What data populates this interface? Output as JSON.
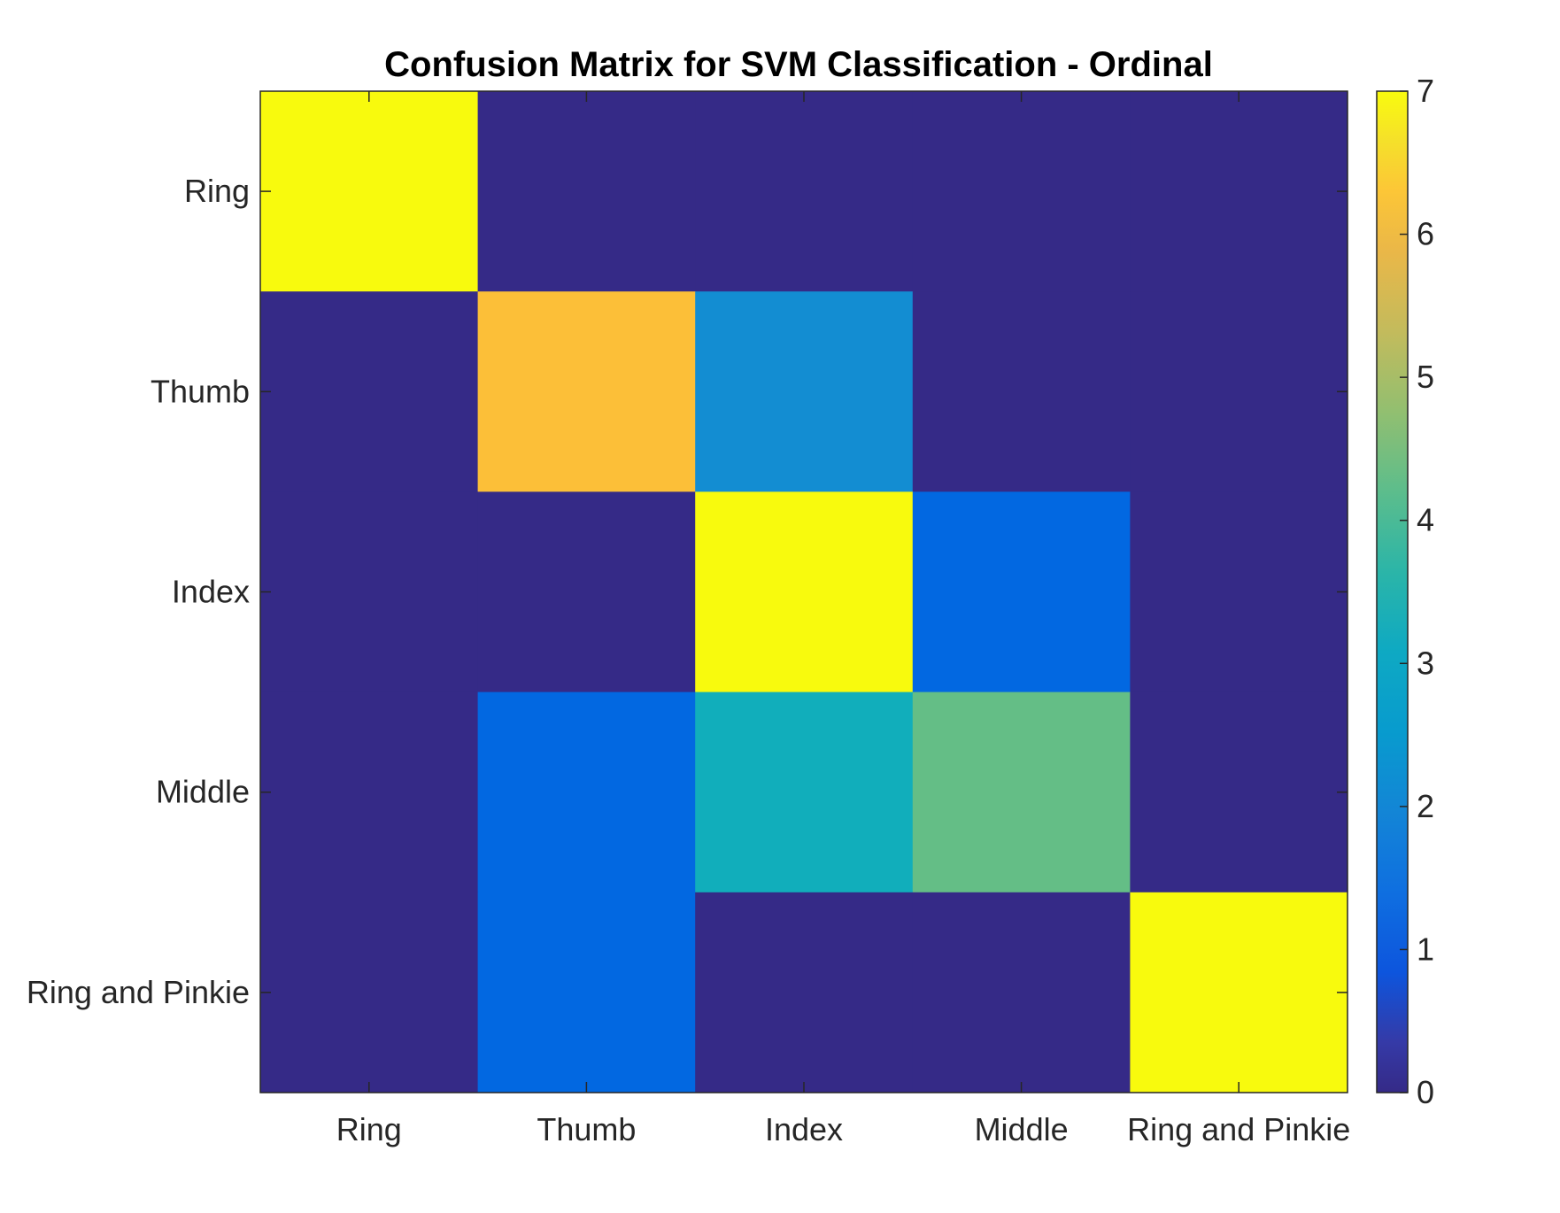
{
  "chart_data": {
    "type": "heatmap",
    "title": "Confusion Matrix for SVM Classification - Ordinal",
    "xlabel": "",
    "ylabel": "",
    "x_categories": [
      "Ring",
      "Thumb",
      "Index",
      "Middle",
      "Ring and Pinkie"
    ],
    "y_categories": [
      "Ring",
      "Thumb",
      "Index",
      "Middle",
      "Ring and Pinkie"
    ],
    "values": [
      [
        7,
        0,
        0,
        0,
        0
      ],
      [
        0,
        6,
        2,
        0,
        0
      ],
      [
        0,
        0,
        7,
        1,
        0
      ],
      [
        0,
        1,
        3,
        4,
        0
      ],
      [
        0,
        1,
        0,
        0,
        7
      ]
    ],
    "colorbar": {
      "range": [
        0,
        7
      ],
      "ticks": [
        "0",
        "1",
        "2",
        "3",
        "4",
        "5",
        "6",
        "7"
      ],
      "colormap": "parula"
    },
    "grid": false
  },
  "colors": {
    "cell_0": "#352a87",
    "cell_1": "#0268e1",
    "cell_2": "#138dd2",
    "cell_3": "#11aebb",
    "cell_4": "#64be86",
    "cell_6": "#fcbf38",
    "cell_7": "#f8fa0d"
  }
}
